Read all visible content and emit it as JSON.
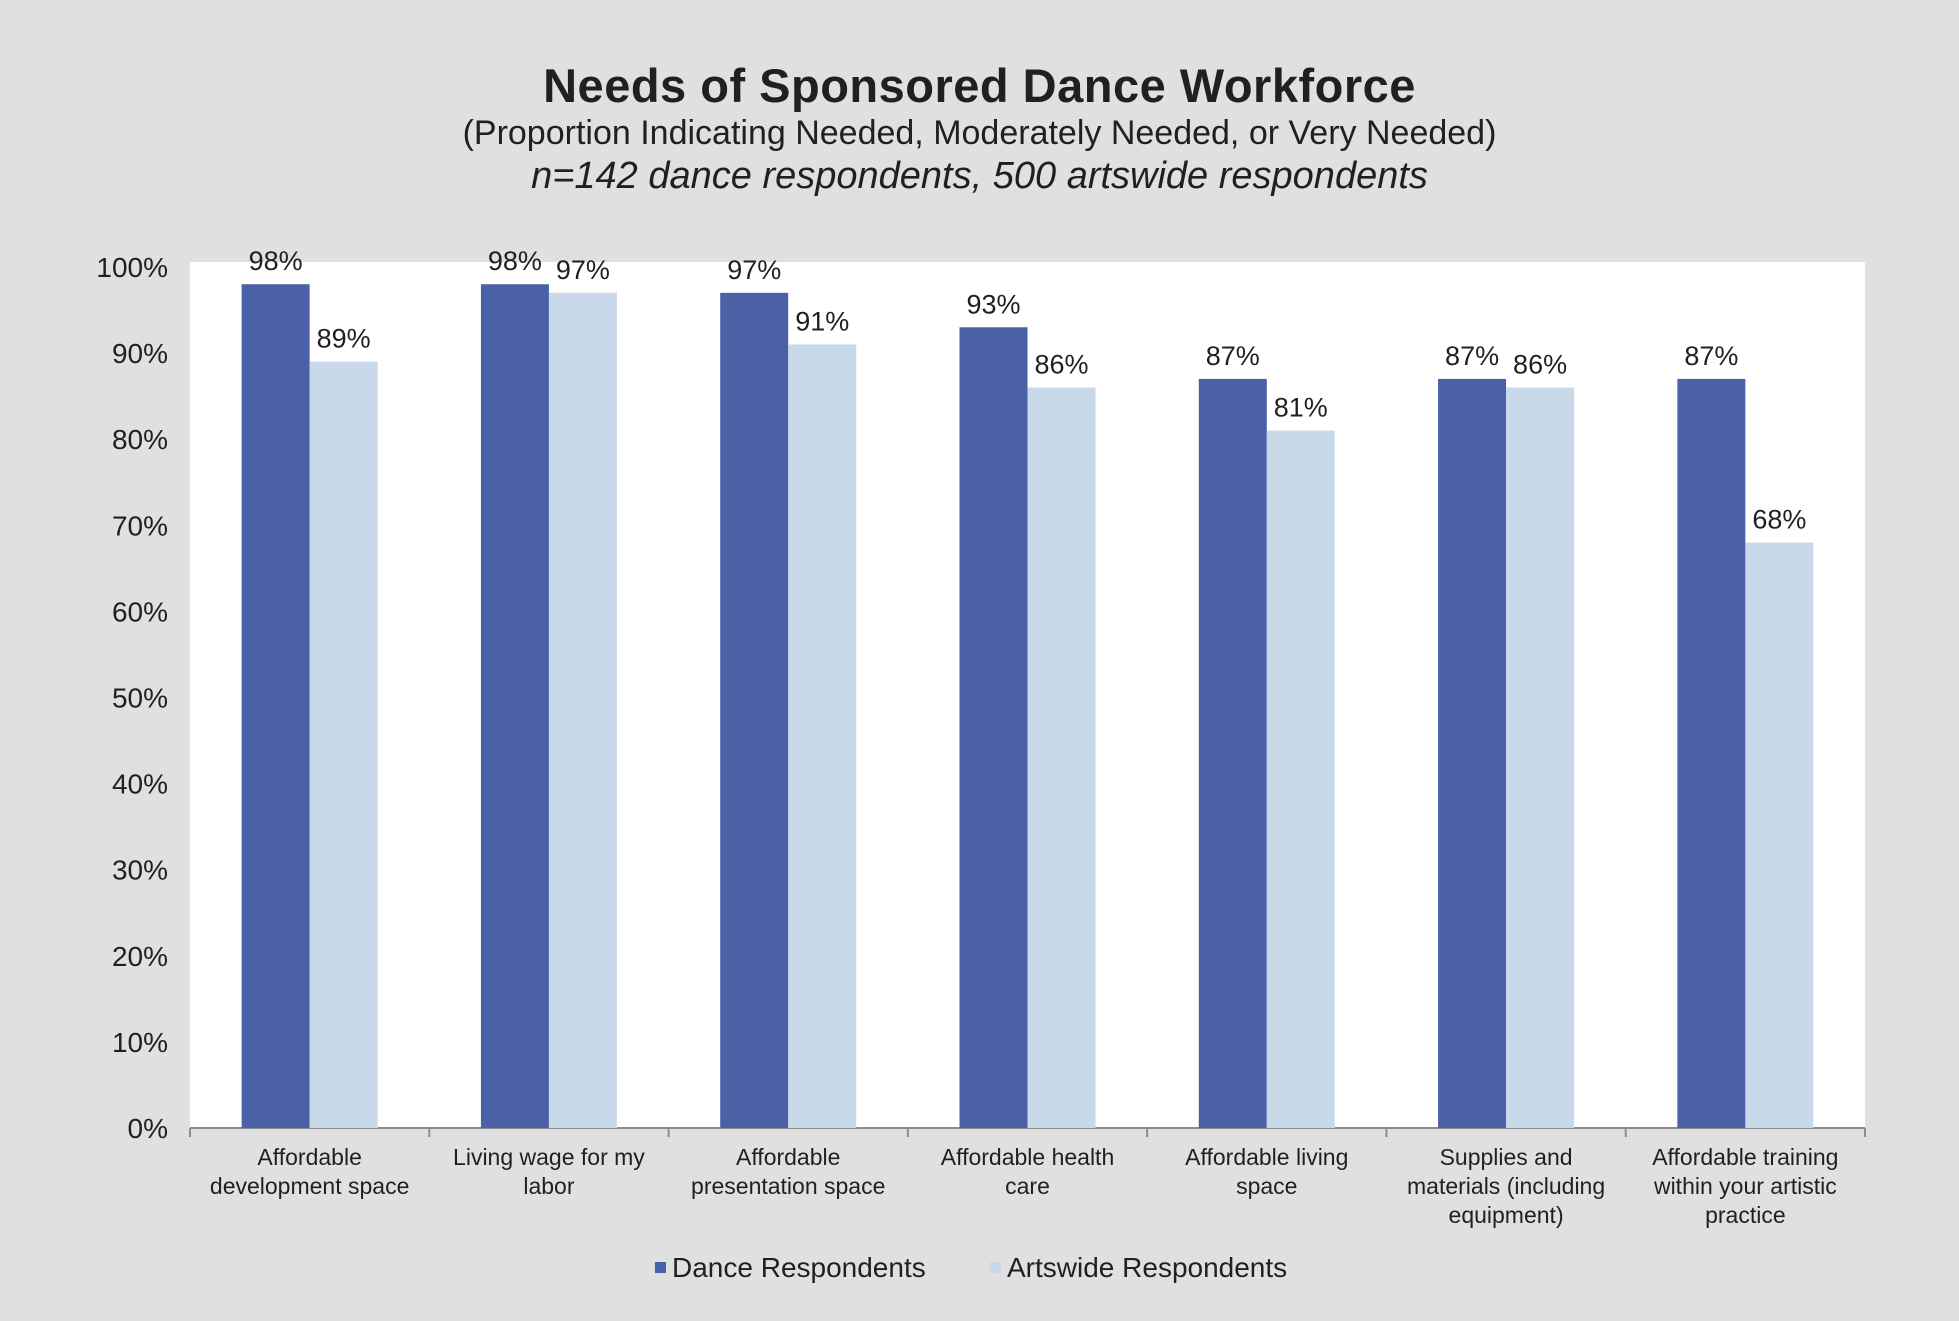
{
  "chart_data": {
    "type": "bar",
    "title": "Needs of Sponsored Dance Workforce",
    "subtitle": "(Proportion Indicating Needed, Moderately Needed, or Very Needed)",
    "note": "n=142 dance respondents, 500 artswide respondents",
    "categories": [
      [
        "Affordable",
        "development space"
      ],
      [
        "Living wage for my",
        "labor"
      ],
      [
        "Affordable",
        "presentation space"
      ],
      [
        "Affordable health",
        "care"
      ],
      [
        "Affordable living",
        "space"
      ],
      [
        "Supplies and",
        "materials (including",
        "equipment)"
      ],
      [
        "Affordable training",
        "within your artistic",
        "practice"
      ]
    ],
    "series": [
      {
        "name": "Dance Respondents",
        "color": "#4a61a8",
        "values": [
          98,
          98,
          97,
          93,
          87,
          87,
          87
        ]
      },
      {
        "name": "Artswide Respondents",
        "color": "#c8d9ea",
        "values": [
          89,
          97,
          91,
          86,
          81,
          86,
          68
        ]
      }
    ],
    "value_suffix": "%",
    "ylim": [
      0,
      100
    ],
    "yticks": [
      0,
      10,
      20,
      30,
      40,
      50,
      60,
      70,
      80,
      90,
      100
    ],
    "xlabel": "",
    "ylabel": "",
    "grid": false,
    "legend_position": "bottom-center"
  }
}
